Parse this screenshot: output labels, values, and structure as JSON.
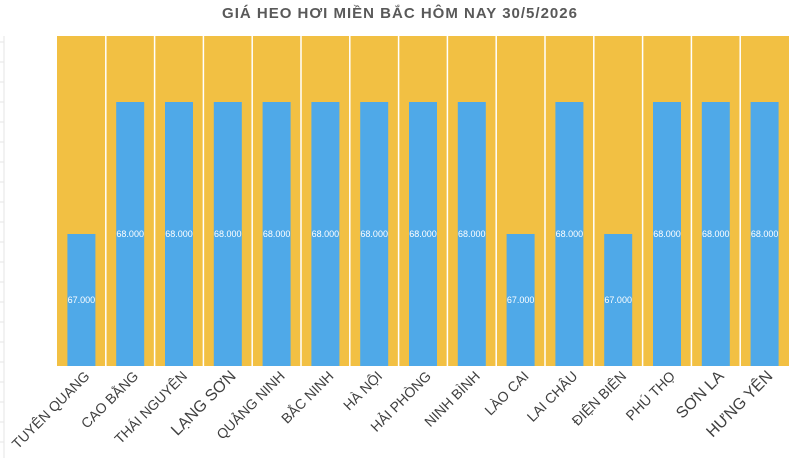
{
  "chart_data": {
    "type": "bar",
    "title": "GIÁ HEO HƠI MIỀN BẮC HÔM NAY 30/5/2026",
    "xlabel": "",
    "ylabel": "",
    "ylim": [
      66000,
      68500
    ],
    "grid": false,
    "legend": "none",
    "categories": [
      "TUYÊN QUANG",
      "CAO BẰNG",
      "THÁI NGUYÊN",
      "LẠNG SƠN",
      "QUẢNG NINH",
      "BẮC NINH",
      "HÀ NỘI",
      "HẢI PHÒNG",
      "NINH BÌNH",
      "LÀO CAI",
      "LAI CHÂU",
      "ĐIỆN BIÊN",
      "PHÚ THỌ",
      "SƠN LA",
      "HƯNG YÊN"
    ],
    "series": [
      {
        "values": [
          67000,
          68000,
          68000,
          68000,
          68000,
          68000,
          68000,
          68000,
          68000,
          67000,
          68000,
          67000,
          68000,
          68000,
          68000
        ],
        "data_labels": [
          "67.000",
          "68.000",
          "68.000",
          "68.000",
          "68.000",
          "68.000",
          "68.000",
          "68.000",
          "68.000",
          "67.000",
          "68.000",
          "67.000",
          "68.000",
          "68.000",
          "68.000"
        ]
      }
    ],
    "colors": {
      "bar": "#4FA9E8",
      "plot_background": "#F2C043",
      "divider": "#FFFFFF",
      "title": "#595959",
      "category_text": "#404040"
    }
  }
}
